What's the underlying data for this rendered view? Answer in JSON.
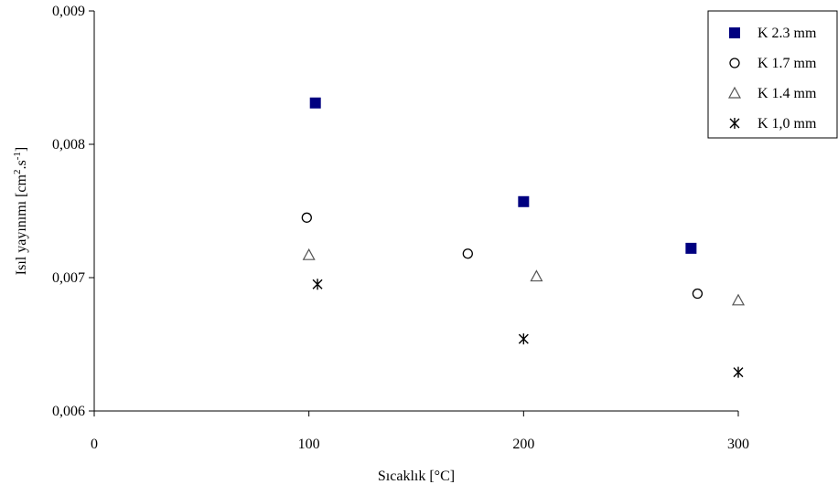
{
  "chart_data": {
    "type": "scatter",
    "title": "",
    "xlabel": "Sıcaklık [°C]",
    "ylabel": "Isıl yayınımı [cm",
    "ylabel_sup1": "2",
    "ylabel_mid": ".s",
    "ylabel_sup2": "-1",
    "ylabel_end": "]",
    "xlim": [
      0,
      300
    ],
    "ylim": [
      0.006,
      0.009
    ],
    "x_ticks": [
      0,
      100,
      200,
      300
    ],
    "x_tick_labels": [
      "0",
      "100",
      "200",
      "300"
    ],
    "y_ticks": [
      0.006,
      0.007,
      0.008,
      0.009
    ],
    "y_tick_labels": [
      "0,006",
      "0,007",
      "0,008",
      "0,009"
    ],
    "grid": false,
    "legend_position": "top-right",
    "series": [
      {
        "name": "K 2.3 mm",
        "marker": "square",
        "color": "#000080",
        "x": [
          103,
          200,
          278
        ],
        "y": [
          0.00831,
          0.00757,
          0.00722
        ]
      },
      {
        "name": "K 1.7 mm",
        "marker": "circle",
        "color": "#000000",
        "x": [
          99,
          174,
          281
        ],
        "y": [
          0.00745,
          0.00718,
          0.00688
        ]
      },
      {
        "name": "K 1.4 mm",
        "marker": "triangle",
        "color": "#555555",
        "x": [
          100,
          206,
          300
        ],
        "y": [
          0.00717,
          0.00701,
          0.00683
        ]
      },
      {
        "name": "K 1,0 mm",
        "marker": "asterisk",
        "color": "#000000",
        "x": [
          104,
          200,
          300
        ],
        "y": [
          0.00695,
          0.00654,
          0.00629
        ]
      }
    ]
  }
}
